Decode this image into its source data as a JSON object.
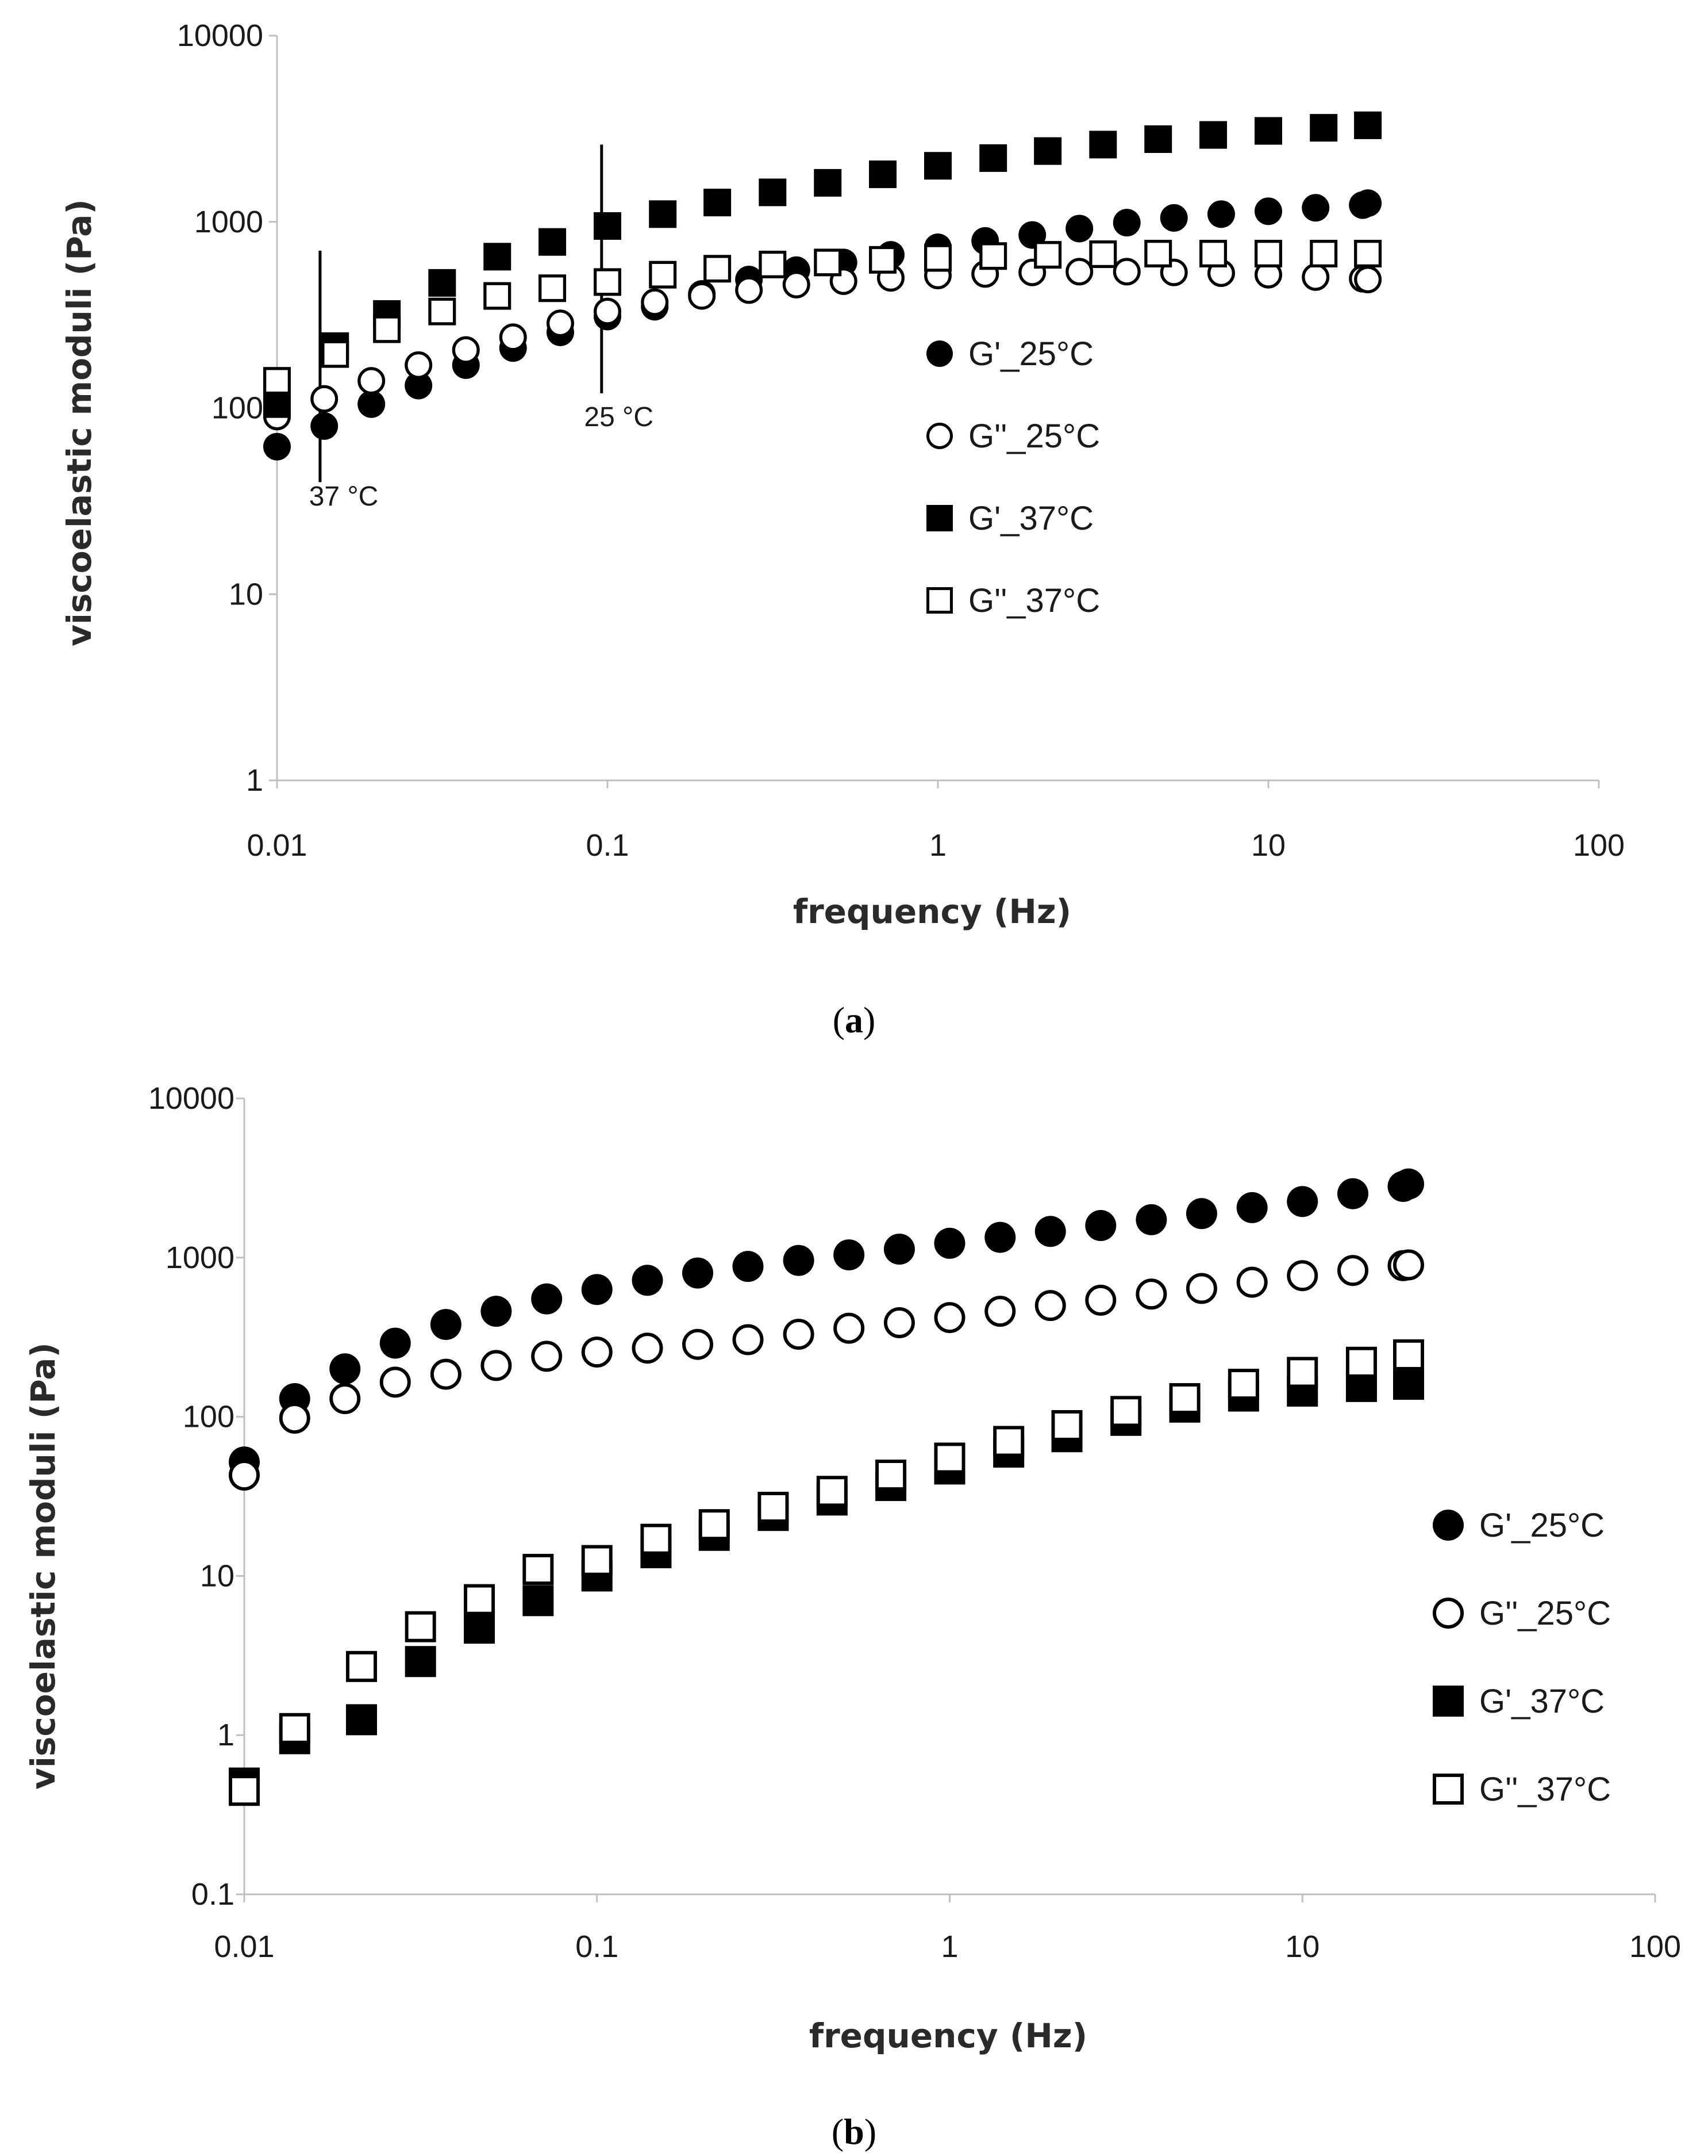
{
  "chart_data": [
    {
      "type": "scatter",
      "panel": "a",
      "caption_letter": "a",
      "xscale": "log",
      "yscale": "log",
      "xlabel": "frequency (Hz)",
      "ylabel": "viscoelastic moduli (Pa)",
      "xlim": [
        0.01,
        100
      ],
      "ylim": [
        1,
        10000
      ],
      "xticks": [
        0.01,
        0.1,
        1,
        10,
        100
      ],
      "xtick_labels": [
        "0.01",
        "0.1",
        "1",
        "10",
        "100"
      ],
      "yticks": [
        1,
        10,
        100,
        1000,
        10000
      ],
      "ytick_labels": [
        "1",
        "10",
        "100",
        "1000",
        "10000"
      ],
      "legend_position": "right-center",
      "series": [
        {
          "name": "G'_25°C",
          "marker": "filled-circle",
          "x": [
            0.01,
            0.0139,
            0.0193,
            0.0268,
            0.0373,
            0.0518,
            0.072,
            0.1,
            0.139,
            0.193,
            0.268,
            0.373,
            0.518,
            0.72,
            1,
            1.39,
            1.93,
            2.68,
            3.73,
            5.18,
            7.2,
            10,
            13.9,
            19.3,
            20
          ],
          "y": [
            62,
            80,
            105,
            132,
            170,
            210,
            255,
            310,
            350,
            410,
            490,
            550,
            605,
            665,
            730,
            790,
            850,
            920,
            990,
            1050,
            1100,
            1140,
            1190,
            1230,
            1260
          ]
        },
        {
          "name": "G''_25°C",
          "marker": "open-circle",
          "x": [
            0.01,
            0.0139,
            0.0193,
            0.0268,
            0.0373,
            0.0518,
            0.072,
            0.1,
            0.139,
            0.193,
            0.268,
            0.373,
            0.518,
            0.72,
            1,
            1.39,
            1.93,
            2.68,
            3.73,
            5.18,
            7.2,
            10,
            13.9,
            19.3,
            20
          ],
          "y": [
            90,
            112,
            140,
            170,
            205,
            240,
            285,
            330,
            370,
            400,
            430,
            460,
            480,
            500,
            515,
            525,
            535,
            540,
            540,
            535,
            530,
            520,
            505,
            495,
            490
          ]
        },
        {
          "name": "G'_37°C",
          "marker": "filled-square",
          "x": [
            0.01,
            0.015,
            0.0215,
            0.0316,
            0.0464,
            0.0681,
            0.1,
            0.147,
            0.215,
            0.316,
            0.464,
            0.681,
            1,
            1.47,
            2.15,
            3.16,
            4.64,
            6.81,
            10,
            14.7,
            20
          ],
          "y": [
            105,
            215,
            320,
            470,
            650,
            780,
            950,
            1100,
            1270,
            1440,
            1620,
            1800,
            2000,
            2200,
            2400,
            2600,
            2780,
            2930,
            3080,
            3200,
            3300
          ]
        },
        {
          "name": "G''_37°C",
          "marker": "open-square",
          "x": [
            0.01,
            0.015,
            0.0215,
            0.0316,
            0.0464,
            0.0681,
            0.1,
            0.147,
            0.215,
            0.316,
            0.464,
            0.681,
            1,
            1.47,
            2.15,
            3.16,
            4.64,
            6.81,
            10,
            14.7,
            20
          ],
          "y": [
            140,
            195,
            265,
            330,
            400,
            440,
            475,
            520,
            560,
            590,
            605,
            625,
            640,
            655,
            665,
            670,
            675,
            675,
            675,
            675,
            675
          ]
        }
      ],
      "error_bars": [
        {
          "x": 0.0135,
          "y_low": 40,
          "y_high": 700
        },
        {
          "x": 0.096,
          "y_low": 120,
          "y_high": 2600
        }
      ],
      "annotations": [
        {
          "text": "37 °C",
          "x": 0.0125,
          "y": 30
        },
        {
          "text": "25 °C",
          "x": 0.085,
          "y": 80
        }
      ]
    },
    {
      "type": "scatter",
      "panel": "b",
      "caption_letter": "b",
      "xscale": "log",
      "yscale": "log",
      "xlabel": "frequency (Hz)",
      "ylabel": "viscoelastic moduli (Pa)",
      "xlim": [
        0.01,
        100
      ],
      "ylim": [
        0.1,
        10000
      ],
      "xticks": [
        0.01,
        0.1,
        1,
        10,
        100
      ],
      "xtick_labels": [
        "0.01",
        "0.1",
        "1",
        "10",
        "100"
      ],
      "yticks": [
        0.1,
        1,
        10,
        100,
        1000,
        10000
      ],
      "ytick_labels": [
        "0.1",
        "1",
        "10",
        "100",
        "1000",
        "10000"
      ],
      "legend_position": "right-center",
      "series": [
        {
          "name": "G'_25°C",
          "marker": "filled-circle",
          "x": [
            0.01,
            0.0139,
            0.0193,
            0.0268,
            0.0373,
            0.0518,
            0.072,
            0.1,
            0.139,
            0.193,
            0.268,
            0.373,
            0.518,
            0.72,
            1,
            1.39,
            1.93,
            2.68,
            3.73,
            5.18,
            7.2,
            10,
            13.9,
            19.3,
            20
          ],
          "y": [
            52,
            130,
            200,
            290,
            380,
            460,
            550,
            630,
            720,
            800,
            880,
            960,
            1040,
            1130,
            1230,
            1340,
            1460,
            1590,
            1730,
            1890,
            2060,
            2250,
            2520,
            2800,
            2900
          ]
        },
        {
          "name": "G''_25°C",
          "marker": "open-circle",
          "x": [
            0.01,
            0.0139,
            0.0193,
            0.0268,
            0.0373,
            0.0518,
            0.072,
            0.1,
            0.139,
            0.193,
            0.268,
            0.373,
            0.518,
            0.72,
            1,
            1.39,
            1.93,
            2.68,
            3.73,
            5.18,
            7.2,
            10,
            13.9,
            19.3,
            20
          ],
          "y": [
            43,
            98,
            130,
            165,
            185,
            210,
            240,
            255,
            270,
            285,
            305,
            330,
            360,
            390,
            420,
            460,
            500,
            540,
            590,
            640,
            700,
            770,
            830,
            890,
            900
          ]
        },
        {
          "name": "G'_37°C",
          "marker": "filled-square",
          "x": [
            0.01,
            0.0139,
            0.0215,
            0.0316,
            0.0464,
            0.0681,
            0.1,
            0.147,
            0.215,
            0.316,
            0.464,
            0.681,
            1,
            1.47,
            2.15,
            3.16,
            4.64,
            6.81,
            10,
            14.7,
            20
          ],
          "y": [
            0.5,
            0.95,
            1.25,
            2.9,
            4.7,
            7,
            10,
            14,
            18,
            24,
            30,
            37,
            47,
            60,
            75,
            95,
            115,
            135,
            145,
            155,
            160
          ]
        },
        {
          "name": "G''_37°C",
          "marker": "open-square",
          "x": [
            0.01,
            0.0139,
            0.0215,
            0.0316,
            0.0464,
            0.0681,
            0.1,
            0.147,
            0.215,
            0.316,
            0.464,
            0.681,
            1,
            1.47,
            2.15,
            3.16,
            4.64,
            6.81,
            10,
            14.7,
            20
          ],
          "y": [
            0.45,
            1.1,
            2.7,
            4.8,
            7.1,
            11,
            12.5,
            17,
            21,
            27,
            34,
            43,
            55,
            70,
            88,
            108,
            130,
            160,
            190,
            220,
            245
          ]
        }
      ]
    }
  ]
}
